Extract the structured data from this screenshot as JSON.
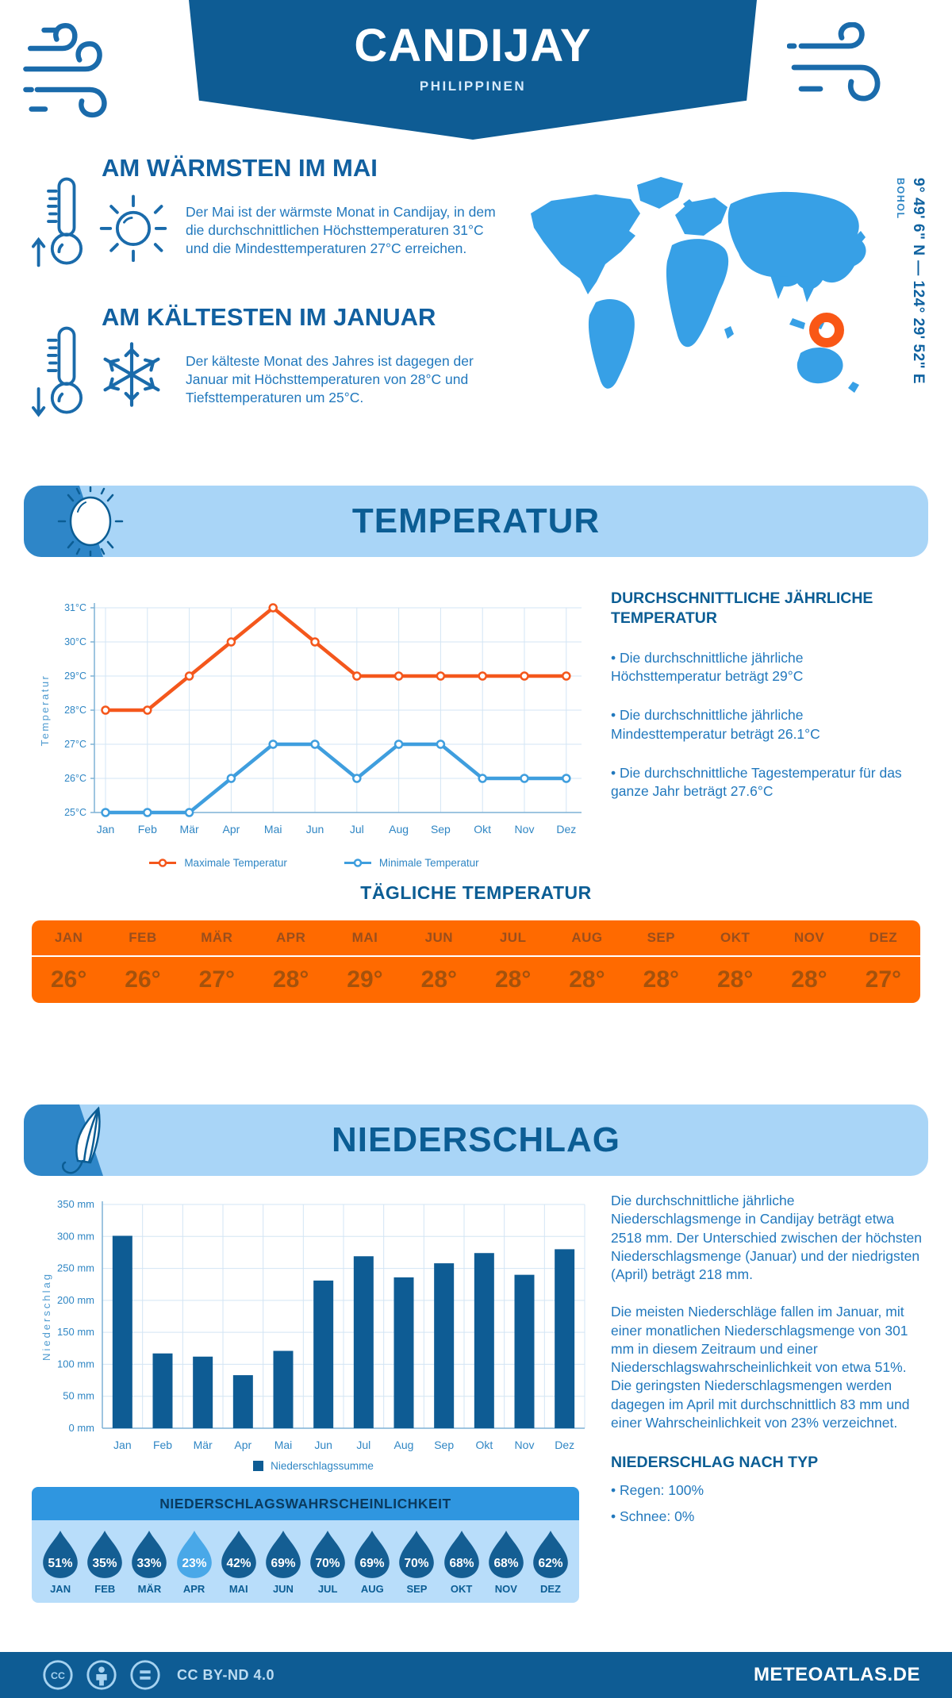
{
  "header": {
    "title": "CANDIJAY",
    "subtitle": "PHILIPPINEN"
  },
  "warmest": {
    "title": "AM WÄRMSTEN IM MAI",
    "text": "Der Mai ist der wärmste Monat in Candijay, in dem die durchschnittlichen Höchsttemperaturen 31°C und die Mindesttemperaturen 27°C erreichen."
  },
  "coldest": {
    "title": "AM KÄLTESTEN IM JANUAR",
    "text": "Der kälteste Monat des Jahres ist dagegen der Januar mit Höchsttemperaturen von 28°C und Tiefsttemperaturen um 25°C."
  },
  "map": {
    "location_label": "BOHOL",
    "coordinates": "9° 49' 6\" N — 124° 29' 52\" E"
  },
  "temperature_section": {
    "title": "TEMPERATUR"
  },
  "annual_temperature": {
    "title": "DURCHSCHNITTLICHE JÄHRLICHE TEMPERATUR",
    "bullets": [
      "• Die durchschnittliche jährliche Höchsttemperatur beträgt 29°C",
      "• Die durchschnittliche jährliche Mindesttemperatur beträgt 26.1°C",
      "• Die durchschnittliche Tagestemperatur für das ganze Jahr beträgt 27.6°C"
    ]
  },
  "daily_temperature": {
    "title": "TÄGLICHE TEMPERATUR",
    "months": [
      "JAN",
      "FEB",
      "MÄR",
      "APR",
      "MAI",
      "JUN",
      "JUL",
      "AUG",
      "SEP",
      "OKT",
      "NOV",
      "DEZ"
    ],
    "values": [
      "26°",
      "26°",
      "27°",
      "28°",
      "29°",
      "28°",
      "28°",
      "28°",
      "28°",
      "28°",
      "28°",
      "27°"
    ]
  },
  "precipitation_section": {
    "title": "NIEDERSCHLAG"
  },
  "precipitation_text": {
    "p1": "Die durchschnittliche jährliche Niederschlagsmenge in Candijay beträgt etwa 2518 mm. Der Unterschied zwischen der höchsten Niederschlagsmenge (Januar) und der niedrigsten (April) beträgt 218 mm.",
    "p2": "Die meisten Niederschläge fallen im Januar, mit einer monatlichen Niederschlagsmenge von 301 mm in diesem Zeitraum und einer Niederschlagswahrscheinlichkeit von etwa 51%. Die geringsten Niederschlagsmengen werden dagegen im April mit durchschnittlich 83 mm und einer Wahrscheinlichkeit von 23% verzeichnet.",
    "type_title": "NIEDERSCHLAG NACH TYP",
    "bullets": [
      "• Regen: 100%",
      "• Schnee: 0%"
    ]
  },
  "precipitation_probability": {
    "title": "NIEDERSCHLAGSWAHRSCHEINLICHKEIT",
    "months": [
      "JAN",
      "FEB",
      "MÄR",
      "APR",
      "MAI",
      "JUN",
      "JUL",
      "AUG",
      "SEP",
      "OKT",
      "NOV",
      "DEZ"
    ],
    "values": [
      "51%",
      "35%",
      "33%",
      "23%",
      "42%",
      "69%",
      "70%",
      "69%",
      "70%",
      "68%",
      "68%",
      "62%"
    ],
    "highlight_index": 3
  },
  "footer": {
    "license": "CC BY-ND 4.0",
    "site": "METEOATLAS.DE"
  },
  "colors": {
    "primary": "#0e5c94",
    "section_bg": "#a9d5f7",
    "accent": "#2e86c8",
    "heading_text": "#0b5d94",
    "body_text": "#2178bd",
    "orange_band": "#ff6a00",
    "strip_month_text": "#9a4e1c",
    "strip_value_text": "#a5520c",
    "max_line": "#f4571c",
    "min_line": "#3f9ede",
    "bar": "#0e5c94",
    "map": "#37a0e6",
    "marker": "#f95716",
    "drop_dark": "#145e93",
    "drop_light": "#49a8e8",
    "grid": "#d3e5f4",
    "axis": "#7fb2d6",
    "tick_text": "#2f86c4"
  },
  "chart_data": [
    {
      "type": "line",
      "categories": [
        "Jan",
        "Feb",
        "Mär",
        "Apr",
        "Mai",
        "Jun",
        "Jul",
        "Aug",
        "Sep",
        "Okt",
        "Nov",
        "Dez"
      ],
      "series": [
        {
          "name": "Maximale Temperatur",
          "color": "#f4571c",
          "values": [
            28,
            28,
            29,
            30,
            31,
            30,
            29,
            29,
            29,
            29,
            29,
            29
          ]
        },
        {
          "name": "Minimale Temperatur",
          "color": "#3f9ede",
          "values": [
            25,
            25,
            25,
            26,
            27,
            27,
            26,
            27,
            27,
            26,
            26,
            26
          ]
        }
      ],
      "ylabel": "Temperatur",
      "ylim": [
        25,
        31
      ],
      "ytick_step": 1,
      "ytick_suffix": "°C",
      "grid": true,
      "legend_position": "bottom"
    },
    {
      "type": "bar",
      "categories": [
        "Jan",
        "Feb",
        "Mär",
        "Apr",
        "Mai",
        "Jun",
        "Jul",
        "Aug",
        "Sep",
        "Okt",
        "Nov",
        "Dez"
      ],
      "values": [
        301,
        117,
        112,
        83,
        121,
        231,
        269,
        236,
        258,
        274,
        240,
        280
      ],
      "series_name": "Niederschlagssumme",
      "ylabel": "Niederschlag",
      "ylim": [
        0,
        350
      ],
      "ytick_step": 50,
      "ytick_suffix": " mm",
      "grid": true,
      "legend_position": "bottom"
    }
  ]
}
